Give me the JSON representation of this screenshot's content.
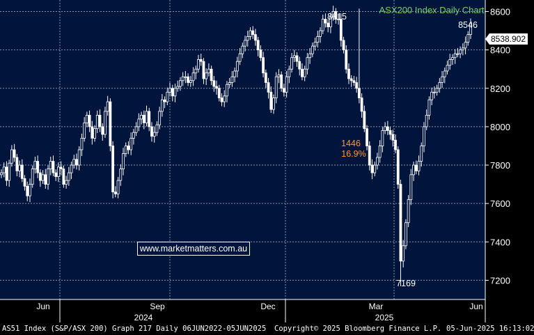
{
  "chart_data": {
    "type": "candlestick",
    "title": "ASX200 Index Daily Chart",
    "current_value": "8538.902",
    "ylim": [
      7100,
      8660
    ],
    "y_ticks": [
      "7200",
      "7400",
      "7600",
      "7800",
      "8000",
      "8200",
      "8400",
      "8600"
    ],
    "x_month_labels": [
      "Jun",
      "Sep",
      "Dec",
      "Mar",
      "Jun"
    ],
    "x_year_labels": [
      "2024",
      "2025"
    ],
    "annotations": {
      "high": "8615",
      "recent": "8546",
      "low": "7169",
      "drop_points": "1446",
      "drop_percent": "16.9%"
    },
    "series": [
      {
        "values": [
          7760,
          7790,
          7720,
          7810,
          7880,
          7840,
          7770,
          7800,
          7730,
          7690,
          7640,
          7700,
          7780,
          7820,
          7760,
          7720,
          7750,
          7700,
          7780,
          7820,
          7760,
          7740,
          7790,
          7780,
          7700,
          7720,
          7760,
          7800,
          7830,
          7800,
          7880,
          7940,
          8020,
          8060,
          8000,
          7940,
          7990,
          8060,
          8000,
          7960,
          8080,
          8130,
          7900,
          7660,
          7650,
          7720,
          7780,
          7860,
          7900,
          7880,
          7940,
          7970,
          8000,
          8040,
          8060,
          8020,
          8080,
          8000,
          7950,
          7970,
          8010,
          8080,
          8140,
          8130,
          8180,
          8200,
          8160,
          8200,
          8210,
          8240,
          8260,
          8260,
          8230,
          8240,
          8280,
          8300,
          8350,
          8340,
          8250,
          8280,
          8300,
          8240,
          8210,
          8200,
          8150,
          8130,
          8160,
          8220,
          8230,
          8260,
          8290,
          8340,
          8380,
          8420,
          8450,
          8470,
          8500,
          8480,
          8450,
          8400,
          8360,
          8280,
          8230,
          8180,
          8090,
          8150,
          8260,
          8270,
          8200,
          8180,
          8260,
          8300,
          8360,
          8370,
          8340,
          8300,
          8260,
          8300,
          8360,
          8380,
          8420,
          8440,
          8470,
          8500,
          8560,
          8540,
          8520,
          8570,
          8600,
          8560,
          8560,
          8450,
          8400,
          8300,
          8250,
          8240,
          8230,
          8200,
          8150,
          8080,
          7990,
          7900,
          7800,
          7760,
          7800,
          7840,
          7900,
          7980,
          8000,
          7980,
          7960,
          7930,
          7880,
          7700,
          7300,
          7380,
          7500,
          7620,
          7750,
          7800,
          7770,
          7820,
          7900,
          8000,
          8060,
          8140,
          8180,
          8180,
          8200,
          8230,
          8260,
          8290,
          8320,
          8350,
          8360,
          8380,
          8380,
          8400,
          8410,
          8440,
          8480,
          8540
        ]
      }
    ]
  },
  "website": "www.marketmatters.com.au",
  "footer": {
    "instrument": "AS51 Index (S&P/ASX 200) Graph 217  Daily 06JUN2022-05JUN2025",
    "copyright": "Copyright© 2025 Bloomberg Finance L.P.",
    "timestamp": "05-Jun-2025 16:13:02"
  },
  "colors": {
    "plot_bg": "#00143c",
    "grid": "#8a93a8",
    "candle": "#ffffff",
    "title": "#6fd26f",
    "annotation_orange": "#ff9933",
    "text": "#ffffff"
  }
}
